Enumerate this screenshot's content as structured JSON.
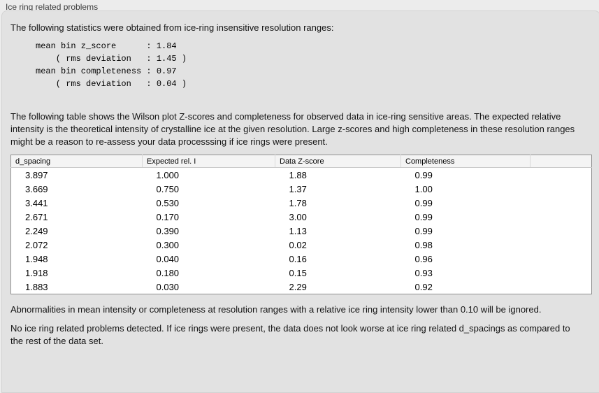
{
  "panel": {
    "title": "Ice ring related problems"
  },
  "intro": {
    "text": "The following statistics were obtained from ice-ring insensitive resolution ranges:",
    "stats_block": "mean bin z_score      : 1.84\n    ( rms deviation   : 1.45 )\nmean bin completeness : 0.97\n    ( rms deviation   : 0.04 )"
  },
  "description": "The following table shows the Wilson plot Z-scores and completeness for observed data in ice-ring sensitive areas. The expected relative intensity is the theoretical intensity of crystalline ice at the given resolution. Large z-scores and high completeness in these resolution ranges might be a reason to re-assess your data processsing if ice rings were present.",
  "table": {
    "columns": [
      "d_spacing",
      "Expected rel. I",
      "Data Z-score",
      "Completeness"
    ],
    "rows": [
      [
        "3.897",
        "1.000",
        "1.88",
        "0.99"
      ],
      [
        "3.669",
        "0.750",
        "1.37",
        "1.00"
      ],
      [
        "3.441",
        "0.530",
        "1.78",
        "0.99"
      ],
      [
        "2.671",
        "0.170",
        "3.00",
        "0.99"
      ],
      [
        "2.249",
        "0.390",
        "1.13",
        "0.99"
      ],
      [
        "2.072",
        "0.300",
        "0.02",
        "0.98"
      ],
      [
        "1.948",
        "0.040",
        "0.16",
        "0.96"
      ],
      [
        "1.918",
        "0.180",
        "0.15",
        "0.93"
      ],
      [
        "1.883",
        "0.030",
        "2.29",
        "0.92"
      ]
    ]
  },
  "notes": {
    "ignore_note": "Abnormalities in mean intensity or completeness at resolution ranges with a relative ice ring intensity lower than 0.10 will be ignored.",
    "conclusion": "No ice ring related problems detected. If ice rings were present, the data does not look worse at ice ring related d_spacings as compared to the rest of the data set."
  },
  "colors": {
    "page_background": "#ececec",
    "panel_background": "#e2e2e2",
    "panel_border": "#d2d2d2",
    "table_background": "#ffffff",
    "table_border": "#8f8f8f",
    "text": "#131313"
  }
}
